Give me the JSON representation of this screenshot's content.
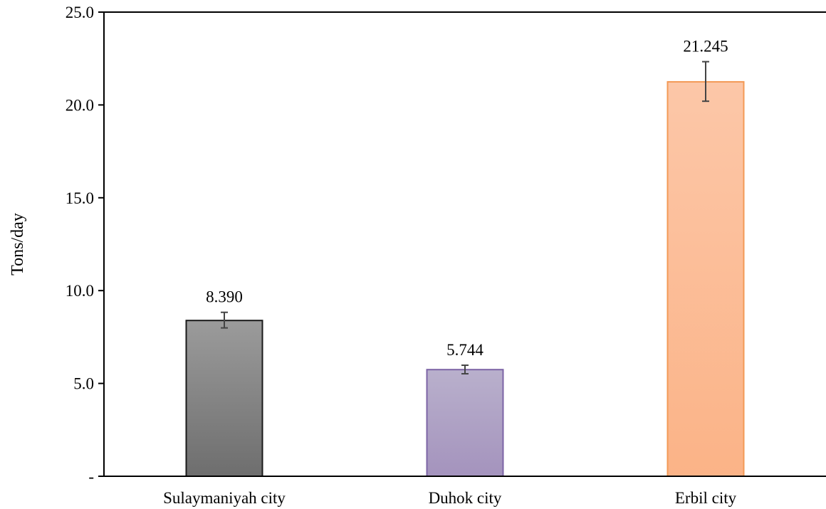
{
  "chart_data": {
    "type": "bar",
    "title": "",
    "xlabel": "",
    "ylabel": "Tons/day",
    "ylim": [
      0,
      25
    ],
    "grid": false,
    "legend": "none",
    "yticks": [
      0,
      5,
      10,
      15,
      20,
      25
    ],
    "ytick_labels": [
      "-",
      "5.0",
      "10.0",
      "15.0",
      "20.0",
      "25.0"
    ],
    "categories": [
      "Sulaymaniyah city",
      "Duhok city",
      "Erbil city"
    ],
    "values": [
      8.39,
      5.744,
      21.245
    ],
    "value_labels": [
      "8.390",
      "5.744",
      "21.245"
    ],
    "error_low": [
      7.99,
      5.52,
      20.2
    ],
    "error_high": [
      8.83,
      5.98,
      22.33
    ],
    "colors": {
      "Sulaymaniyah city": {
        "top": "#9b9b9b",
        "bottom": "#6e6e6e",
        "stroke": "#1a1a1a"
      },
      "Duhok city": {
        "top": "#b9b0cc",
        "bottom": "#a493bd",
        "stroke": "#7c64a6"
      },
      "Erbil city": {
        "top": "#fcc7a8",
        "bottom": "#fbb387",
        "stroke": "#f39a56"
      }
    }
  }
}
